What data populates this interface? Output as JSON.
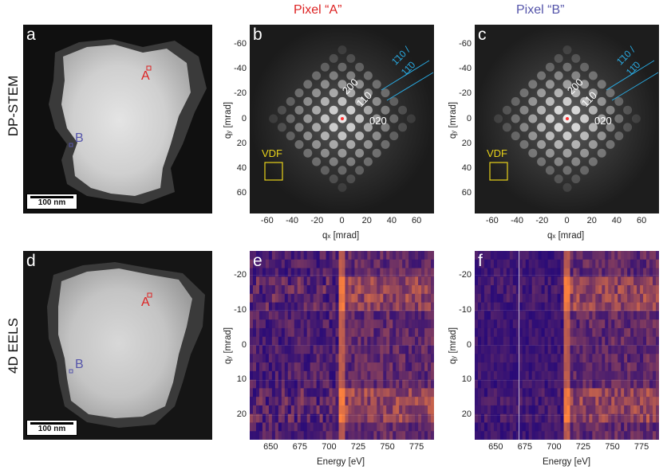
{
  "figure": {
    "header_a": "Pixel “A”",
    "header_b": "Pixel “B”",
    "row_top_label": "DP-STEM",
    "row_bottom_label": "4D EELS",
    "colors": {
      "red": "#dd2222",
      "blue": "#5555aa",
      "cyan": "#29a9e0",
      "yellow": "#e8d21a"
    }
  },
  "panels": {
    "a": {
      "letter": "a",
      "point_a": "A",
      "point_b": "B",
      "scalebar": "100 nm"
    },
    "b": {
      "letter": "b",
      "spots": [
        "200",
        "110",
        "020"
      ],
      "plane_1": "1̄10 /",
      "plane_2": "11̄0",
      "vdf": "VDF",
      "x_ticks": [
        "-60",
        "-40",
        "-20",
        "0",
        "20",
        "40",
        "60"
      ],
      "y_ticks": [
        "-60",
        "-40",
        "-20",
        "0",
        "20",
        "40",
        "60"
      ],
      "x_label": "q",
      "x_sub": "x",
      "x_unit": " [mrad]",
      "y_label": "q",
      "y_sub": "y",
      "y_unit": " [mrad]"
    },
    "c": {
      "letter": "c",
      "spots": [
        "200",
        "110",
        "020"
      ],
      "plane_1": "1̄10 /",
      "plane_2": "11̄0",
      "vdf": "VDF",
      "x_ticks": [
        "-60",
        "-40",
        "-20",
        "0",
        "20",
        "40",
        "60"
      ],
      "y_ticks": [
        "-60",
        "-40",
        "-20",
        "0",
        "20",
        "40",
        "60"
      ],
      "x_label": "q",
      "x_sub": "x",
      "x_unit": " [mrad]",
      "y_label": "q",
      "y_sub": "y",
      "y_unit": " [mrad]"
    },
    "d": {
      "letter": "d",
      "point_a": "A",
      "point_b": "B",
      "scalebar": "100 nm"
    },
    "e": {
      "letter": "e",
      "x_ticks": [
        "650",
        "675",
        "700",
        "725",
        "750",
        "775"
      ],
      "y_ticks": [
        "-20",
        "-10",
        "0",
        "10",
        "20"
      ],
      "x_label": "Energy [eV]",
      "y_label": "q",
      "y_sub": "y",
      "y_unit": " [mrad]"
    },
    "f": {
      "letter": "f",
      "x_ticks": [
        "650",
        "675",
        "700",
        "725",
        "750",
        "775"
      ],
      "y_ticks": [
        "-20",
        "-10",
        "0",
        "10",
        "20"
      ],
      "x_label": "Energy [eV]",
      "y_label": "q",
      "y_sub": "y",
      "y_unit": " [mrad]"
    }
  }
}
